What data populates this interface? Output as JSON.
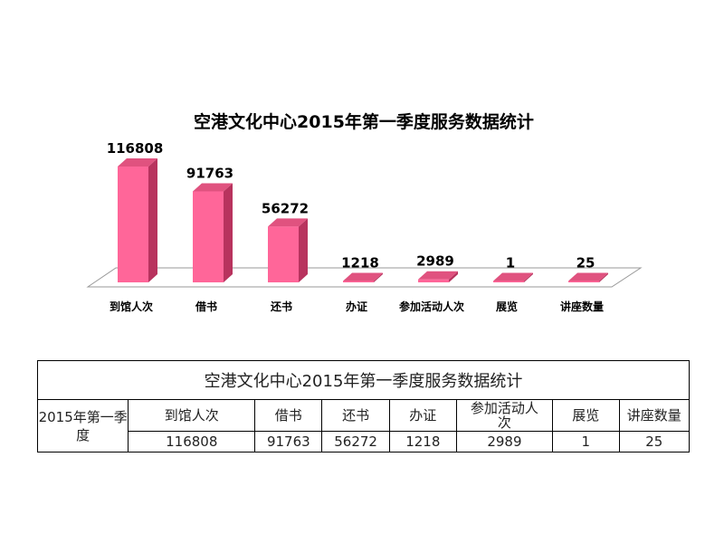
{
  "chart_data": {
    "type": "bar",
    "title": "空港文化中心2015年第一季度服务数据统计",
    "categories": [
      "到馆人次",
      "借书",
      "还书",
      "办证",
      "参加活动人次",
      "展览",
      "讲座数量"
    ],
    "values": [
      116808,
      91763,
      56272,
      1218,
      2989,
      1,
      25
    ],
    "data_labels": [
      "116808",
      "91763",
      "56272",
      "1218",
      "2989",
      "1",
      "25"
    ],
    "ylim": [
      0,
      116808
    ],
    "grid": false,
    "legend": "none",
    "style": "3d-column",
    "colors": {
      "front": "#ff6699",
      "side": "#b8335e",
      "top": "#e0527f",
      "floor": "#ffffff",
      "floor_edge": "#999999"
    }
  },
  "table": {
    "title": "空港文化中心2015年第一季度服务数据统计",
    "period": "2015年第一季度",
    "headers": [
      "到馆人次",
      "借书",
      "还书",
      "办证",
      "参加活动人次",
      "展览",
      "讲座数量"
    ],
    "values": [
      "116808",
      "91763",
      "56272",
      "1218",
      "2989",
      "1",
      "25"
    ]
  }
}
